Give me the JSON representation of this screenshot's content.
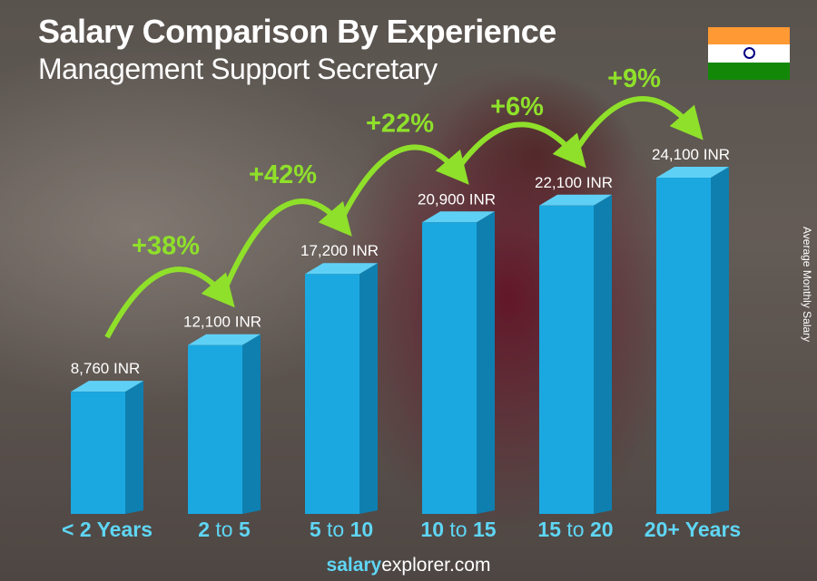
{
  "header": {
    "title": "Salary Comparison By Experience",
    "subtitle": "Management Support Secretary"
  },
  "flag": {
    "country": "India",
    "colors": [
      "#FF9933",
      "#FFFFFF",
      "#138808"
    ],
    "chakra": "#000080"
  },
  "footer": {
    "brand_bold": "salary",
    "brand_rest": "explorer.com"
  },
  "chart_data": {
    "type": "bar",
    "title": "Salary Comparison By Experience",
    "subtitle": "Management Support Secretary",
    "ylabel": "Average Monthly Salary",
    "unit": "INR",
    "categories": [
      {
        "a": "< 2 Years",
        "b": "",
        "c": ""
      },
      {
        "a": "2",
        "b": " to ",
        "c": "5"
      },
      {
        "a": "5",
        "b": " to ",
        "c": "10"
      },
      {
        "a": "10",
        "b": " to ",
        "c": "15"
      },
      {
        "a": "15",
        "b": " to ",
        "c": "20"
      },
      {
        "a": "20+ Years",
        "b": "",
        "c": ""
      }
    ],
    "values": [
      8760,
      12100,
      17200,
      20900,
      22100,
      24100
    ],
    "value_labels": [
      "8,760 INR",
      "12,100 INR",
      "17,200 INR",
      "20,900 INR",
      "22,100 INR",
      "24,100 INR"
    ],
    "changes": [
      "+38%",
      "+42%",
      "+22%",
      "+6%",
      "+9%"
    ],
    "colors": {
      "bar_front": "#1ba8e0",
      "bar_side": "#0f7fb0",
      "bar_top": "#5fd0f5",
      "change": "#8fe02a",
      "category": "#5fd6f5"
    }
  }
}
